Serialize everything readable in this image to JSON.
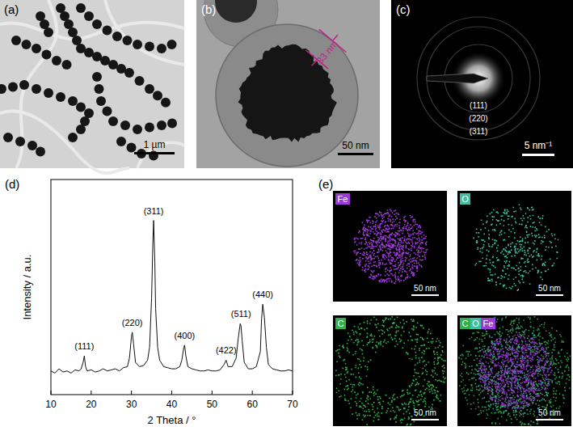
{
  "chart_data": {
    "type": "line",
    "x_label": "2 Theta / °",
    "y_label": "Intensity / a.u.",
    "color": "#111111",
    "x": [
      10,
      11,
      12,
      13,
      14,
      15,
      16,
      17,
      17.5,
      18,
      18.3,
      18.6,
      19,
      20,
      21,
      22,
      23,
      24,
      25,
      26,
      27,
      28,
      29,
      29.5,
      30,
      30.2,
      30.5,
      31,
      32,
      33,
      34,
      34.5,
      35,
      35.3,
      35.5,
      35.8,
      36,
      36.5,
      37,
      38,
      39,
      40,
      41,
      42,
      42.5,
      43,
      43.2,
      43.5,
      44,
      45,
      46,
      47,
      48,
      49,
      50,
      51,
      52,
      53,
      53.5,
      54,
      55,
      56,
      56.5,
      57,
      57.2,
      57.5,
      58,
      59,
      60,
      61,
      62,
      62.3,
      62.6,
      63,
      63.5,
      64,
      65,
      66,
      67,
      68,
      69,
      70
    ],
    "values": [
      11,
      10,
      12,
      10.5,
      11,
      10,
      11.5,
      11,
      12,
      15,
      18,
      13,
      11,
      11.5,
      10.5,
      11,
      12,
      11,
      11.5,
      12,
      11,
      12.5,
      13,
      17,
      27,
      29,
      24,
      15,
      13,
      13.5,
      16,
      22,
      45,
      70,
      81,
      62,
      40,
      22,
      16,
      13,
      12.5,
      12,
      12,
      13,
      16,
      22,
      23,
      18,
      13,
      12,
      11.5,
      11,
      11,
      11.5,
      11,
      11,
      11.5,
      14,
      16,
      13,
      13,
      17,
      26,
      33,
      32,
      25,
      15,
      12,
      12,
      13,
      20,
      35,
      42,
      36,
      22,
      14,
      12,
      11.5,
      11,
      11,
      11.5,
      11
    ],
    "xlim": [
      10,
      70
    ],
    "xticks": [
      10,
      20,
      30,
      40,
      50,
      60,
      70
    ],
    "ylim": [
      0,
      100
    ],
    "tick_labels": "x",
    "grid": false,
    "annotations": [
      {
        "text": "(111)",
        "x": 18.3,
        "y": 21
      },
      {
        "text": "(220)",
        "x": 30.2,
        "y": 32
      },
      {
        "text": "(311)",
        "x": 35.5,
        "y": 84
      },
      {
        "text": "(400)",
        "x": 43.2,
        "y": 26
      },
      {
        "text": "(422)",
        "x": 53.5,
        "y": 19
      },
      {
        "text": "(511)",
        "x": 57.2,
        "y": 36
      },
      {
        "text": "(440)",
        "x": 62.6,
        "y": 45
      }
    ]
  },
  "panels": {
    "a": {
      "label": "(a)",
      "scale_bar": "1 µm"
    },
    "b": {
      "label": "(b)",
      "scale_bar": "50 nm",
      "measure": "33 nm"
    },
    "c": {
      "label": "(c)",
      "scale_bar": "5 nm⁻¹",
      "rings": [
        "(111)",
        "(220)",
        "(311)"
      ]
    },
    "d": {
      "label": "(d)"
    },
    "e": {
      "label": "(e)",
      "scale_bar": "50 nm",
      "maps": [
        {
          "element": "Fe",
          "color": "#9b3ad6"
        },
        {
          "element": "O",
          "color": "#3cc0a0"
        },
        {
          "element": "C",
          "color": "#2fb24a"
        }
      ],
      "overlay": [
        "C",
        "O",
        "Fe"
      ]
    }
  }
}
